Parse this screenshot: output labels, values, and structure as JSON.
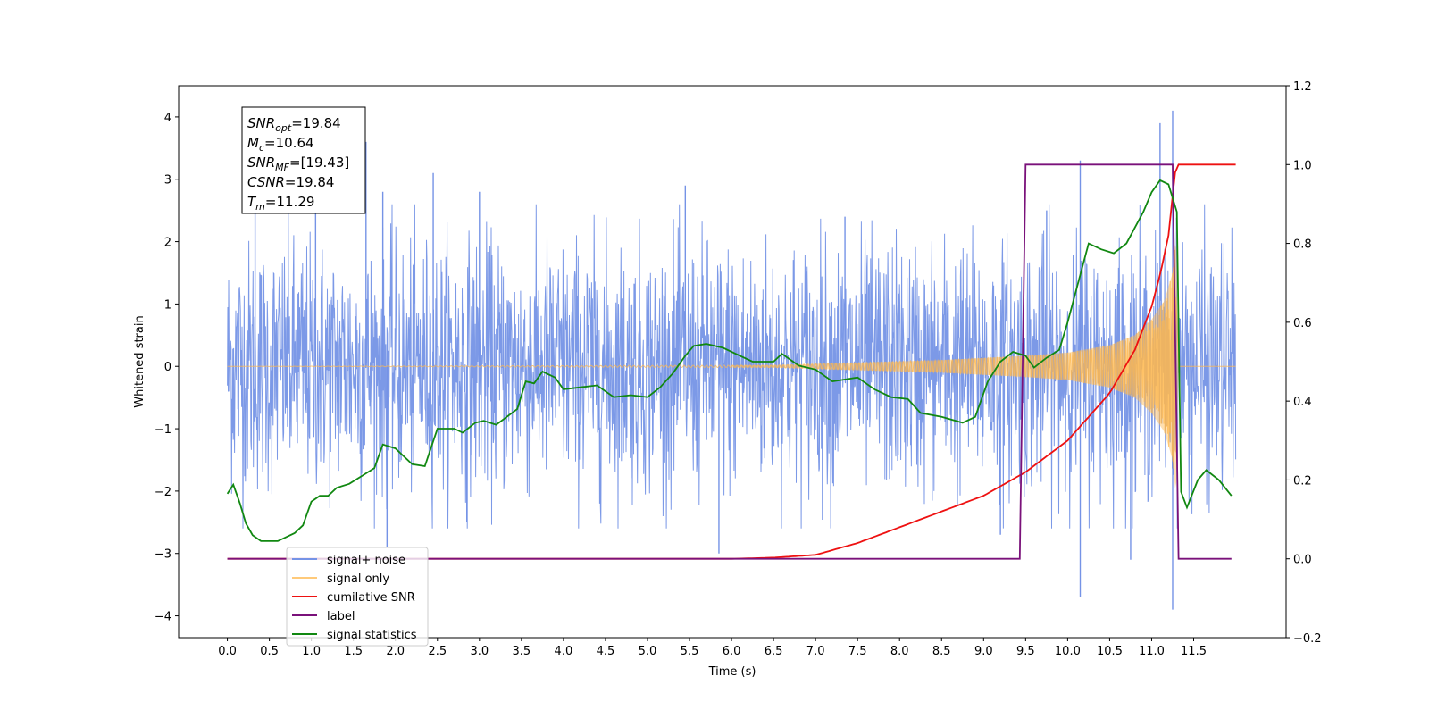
{
  "chart_data": {
    "type": "line",
    "xlabel": "Time (s)",
    "ylabel_left": "Whitened strain",
    "ylabel_right": "",
    "xlim": [
      -0.58,
      12.6
    ],
    "ylim_left": [
      -4.35,
      4.5
    ],
    "ylim_right": [
      -0.2,
      1.2
    ],
    "x_ticks": [
      0.0,
      0.5,
      1.0,
      1.5,
      2.0,
      2.5,
      3.0,
      3.5,
      4.0,
      4.5,
      5.0,
      5.5,
      6.0,
      6.5,
      7.0,
      7.5,
      8.0,
      8.5,
      9.0,
      9.5,
      10.0,
      10.5,
      11.0,
      11.5
    ],
    "x_tick_labels": [
      "0.0",
      "0.5",
      "1.0",
      "1.5",
      "2.0",
      "2.5",
      "3.0",
      "3.5",
      "4.0",
      "4.5",
      "5.0",
      "5.5",
      "6.0",
      "6.5",
      "7.0",
      "7.5",
      "8.0",
      "8.5",
      "9.0",
      "9.5",
      "10.0",
      "10.5",
      "11.0",
      "11.5"
    ],
    "y_ticks_left": [
      -4,
      -3,
      -2,
      -1,
      0,
      1,
      2,
      3,
      4
    ],
    "y_tick_labels_left": [
      "−4",
      "−3",
      "−2",
      "−1",
      "0",
      "1",
      "2",
      "3",
      "4"
    ],
    "y_ticks_right": [
      -0.2,
      0.0,
      0.2,
      0.4,
      0.6,
      0.8,
      1.0,
      1.2
    ],
    "y_tick_labels_right": [
      "−0.2",
      "0.0",
      "0.2",
      "0.4",
      "0.6",
      "0.8",
      "1.0",
      "1.2"
    ],
    "grid": false,
    "legend_position": "lower-left",
    "annotation": {
      "lines": [
        {
          "base": "SNR",
          "sub": "opt",
          "value": "=19.84"
        },
        {
          "base": "M",
          "sub": "c",
          "value": "=10.64"
        },
        {
          "base": "SNR",
          "sub": "MF",
          "value": "=[19.43]"
        },
        {
          "base": "CSNR",
          "sub": "",
          "value": "=19.84"
        },
        {
          "base": "T",
          "sub": "m",
          "value": "=11.29"
        }
      ]
    },
    "series": [
      {
        "name": "signal+ noise",
        "axis": "left",
        "color": "#7593e6",
        "style": "noise-band",
        "x_range": [
          0.0,
          12.0
        ],
        "typical_amplitude": 1.6,
        "peak_values": [
          {
            "x": 0.33,
            "y": 2.7
          },
          {
            "x": 1.05,
            "y": 2.5
          },
          {
            "x": 1.65,
            "y": 3.6
          },
          {
            "x": 1.85,
            "y": 2.8
          },
          {
            "x": 2.45,
            "y": 3.1
          },
          {
            "x": 3.0,
            "y": 2.8
          },
          {
            "x": 5.45,
            "y": 2.9
          },
          {
            "x": 7.35,
            "y": 2.4
          },
          {
            "x": 9.75,
            "y": 2.5
          },
          {
            "x": 10.15,
            "y": 3.3
          },
          {
            "x": 11.1,
            "y": 3.9
          },
          {
            "x": 11.25,
            "y": 4.1
          },
          {
            "x": 1.9,
            "y": -2.9
          },
          {
            "x": 5.85,
            "y": -3.0
          },
          {
            "x": 10.15,
            "y": -3.7
          },
          {
            "x": 10.75,
            "y": -3.1
          },
          {
            "x": 11.25,
            "y": -3.9
          },
          {
            "x": 9.2,
            "y": -2.7
          },
          {
            "x": 2.85,
            "y": -2.5
          }
        ]
      },
      {
        "name": "signal only",
        "axis": "left",
        "color": "#ffb84d",
        "style": "chirp",
        "envelope": [
          {
            "x": 0.0,
            "y": 0.0
          },
          {
            "x": 6.5,
            "y": 0.02
          },
          {
            "x": 7.5,
            "y": 0.06
          },
          {
            "x": 8.5,
            "y": 0.1
          },
          {
            "x": 9.5,
            "y": 0.17
          },
          {
            "x": 10.0,
            "y": 0.22
          },
          {
            "x": 10.5,
            "y": 0.34
          },
          {
            "x": 10.8,
            "y": 0.5
          },
          {
            "x": 11.0,
            "y": 0.75
          },
          {
            "x": 11.15,
            "y": 1.05
          },
          {
            "x": 11.25,
            "y": 1.5
          },
          {
            "x": 11.29,
            "y": 2.1
          },
          {
            "x": 11.32,
            "y": 0.0
          },
          {
            "x": 12.0,
            "y": 0.0
          }
        ]
      },
      {
        "name": "cumilative SNR",
        "axis": "right",
        "color": "#ee1111",
        "style": "line",
        "points": [
          {
            "x": 0.0,
            "y": 0.0
          },
          {
            "x": 6.0,
            "y": 0.0
          },
          {
            "x": 6.5,
            "y": 0.003
          },
          {
            "x": 7.0,
            "y": 0.01
          },
          {
            "x": 7.5,
            "y": 0.04
          },
          {
            "x": 8.0,
            "y": 0.08
          },
          {
            "x": 8.5,
            "y": 0.12
          },
          {
            "x": 9.0,
            "y": 0.16
          },
          {
            "x": 9.5,
            "y": 0.22
          },
          {
            "x": 10.0,
            "y": 0.3
          },
          {
            "x": 10.5,
            "y": 0.42
          },
          {
            "x": 10.8,
            "y": 0.53
          },
          {
            "x": 11.0,
            "y": 0.64
          },
          {
            "x": 11.1,
            "y": 0.72
          },
          {
            "x": 11.2,
            "y": 0.82
          },
          {
            "x": 11.29,
            "y": 1.0
          },
          {
            "x": 12.0,
            "y": 1.0
          }
        ]
      },
      {
        "name": "label",
        "axis": "right",
        "color": "#7a117a",
        "style": "line",
        "points": [
          {
            "x": 0.0,
            "y": 0.0
          },
          {
            "x": 9.43,
            "y": 0.0
          },
          {
            "x": 9.5,
            "y": 1.0
          },
          {
            "x": 11.25,
            "y": 1.0
          },
          {
            "x": 11.32,
            "y": 0.0
          },
          {
            "x": 11.95,
            "y": 0.0
          }
        ]
      },
      {
        "name": "signal statistics",
        "axis": "right",
        "color": "#118811",
        "style": "line",
        "points": [
          {
            "x": 0.0,
            "y": 0.165
          },
          {
            "x": 0.07,
            "y": 0.188
          },
          {
            "x": 0.15,
            "y": 0.14
          },
          {
            "x": 0.22,
            "y": 0.09
          },
          {
            "x": 0.3,
            "y": 0.06
          },
          {
            "x": 0.4,
            "y": 0.045
          },
          {
            "x": 0.6,
            "y": 0.045
          },
          {
            "x": 0.8,
            "y": 0.065
          },
          {
            "x": 0.9,
            "y": 0.085
          },
          {
            "x": 1.0,
            "y": 0.145
          },
          {
            "x": 1.1,
            "y": 0.16
          },
          {
            "x": 1.2,
            "y": 0.16
          },
          {
            "x": 1.3,
            "y": 0.18
          },
          {
            "x": 1.45,
            "y": 0.19
          },
          {
            "x": 1.6,
            "y": 0.21
          },
          {
            "x": 1.75,
            "y": 0.23
          },
          {
            "x": 1.85,
            "y": 0.29
          },
          {
            "x": 2.0,
            "y": 0.28
          },
          {
            "x": 2.2,
            "y": 0.24
          },
          {
            "x": 2.35,
            "y": 0.235
          },
          {
            "x": 2.5,
            "y": 0.33
          },
          {
            "x": 2.7,
            "y": 0.33
          },
          {
            "x": 2.8,
            "y": 0.32
          },
          {
            "x": 2.95,
            "y": 0.345
          },
          {
            "x": 3.05,
            "y": 0.35
          },
          {
            "x": 3.2,
            "y": 0.34
          },
          {
            "x": 3.45,
            "y": 0.38
          },
          {
            "x": 3.55,
            "y": 0.45
          },
          {
            "x": 3.65,
            "y": 0.445
          },
          {
            "x": 3.75,
            "y": 0.475
          },
          {
            "x": 3.9,
            "y": 0.46
          },
          {
            "x": 4.0,
            "y": 0.43
          },
          {
            "x": 4.2,
            "y": 0.435
          },
          {
            "x": 4.4,
            "y": 0.44
          },
          {
            "x": 4.6,
            "y": 0.41
          },
          {
            "x": 4.8,
            "y": 0.415
          },
          {
            "x": 5.0,
            "y": 0.41
          },
          {
            "x": 5.15,
            "y": 0.435
          },
          {
            "x": 5.3,
            "y": 0.47
          },
          {
            "x": 5.45,
            "y": 0.515
          },
          {
            "x": 5.55,
            "y": 0.54
          },
          {
            "x": 5.7,
            "y": 0.545
          },
          {
            "x": 5.9,
            "y": 0.535
          },
          {
            "x": 6.05,
            "y": 0.52
          },
          {
            "x": 6.25,
            "y": 0.5
          },
          {
            "x": 6.5,
            "y": 0.5
          },
          {
            "x": 6.6,
            "y": 0.52
          },
          {
            "x": 6.8,
            "y": 0.49
          },
          {
            "x": 7.0,
            "y": 0.48
          },
          {
            "x": 7.2,
            "y": 0.45
          },
          {
            "x": 7.5,
            "y": 0.46
          },
          {
            "x": 7.7,
            "y": 0.43
          },
          {
            "x": 7.9,
            "y": 0.41
          },
          {
            "x": 8.1,
            "y": 0.405
          },
          {
            "x": 8.25,
            "y": 0.37
          },
          {
            "x": 8.5,
            "y": 0.36
          },
          {
            "x": 8.75,
            "y": 0.345
          },
          {
            "x": 8.9,
            "y": 0.36
          },
          {
            "x": 9.05,
            "y": 0.45
          },
          {
            "x": 9.2,
            "y": 0.5
          },
          {
            "x": 9.35,
            "y": 0.525
          },
          {
            "x": 9.5,
            "y": 0.515
          },
          {
            "x": 9.6,
            "y": 0.485
          },
          {
            "x": 9.75,
            "y": 0.51
          },
          {
            "x": 9.9,
            "y": 0.53
          },
          {
            "x": 10.0,
            "y": 0.6
          },
          {
            "x": 10.1,
            "y": 0.68
          },
          {
            "x": 10.25,
            "y": 0.8
          },
          {
            "x": 10.4,
            "y": 0.785
          },
          {
            "x": 10.55,
            "y": 0.775
          },
          {
            "x": 10.7,
            "y": 0.8
          },
          {
            "x": 10.9,
            "y": 0.88
          },
          {
            "x": 11.0,
            "y": 0.93
          },
          {
            "x": 11.1,
            "y": 0.96
          },
          {
            "x": 11.2,
            "y": 0.95
          },
          {
            "x": 11.3,
            "y": 0.88
          },
          {
            "x": 11.35,
            "y": 0.17
          },
          {
            "x": 11.42,
            "y": 0.13
          },
          {
            "x": 11.55,
            "y": 0.2
          },
          {
            "x": 11.65,
            "y": 0.225
          },
          {
            "x": 11.8,
            "y": 0.2
          },
          {
            "x": 11.95,
            "y": 0.16
          }
        ]
      }
    ]
  }
}
